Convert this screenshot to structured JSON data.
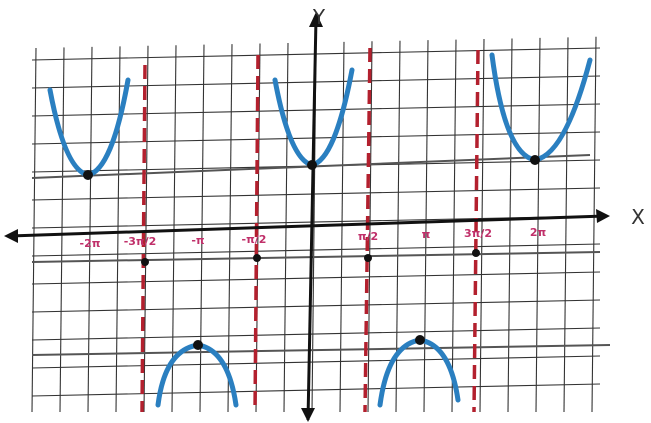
{
  "axes": {
    "x_label": "X",
    "y_label": "Y"
  },
  "tick_labels": [
    "-2π",
    "-3π/2",
    "-π",
    "-π/2",
    "π/2",
    "π",
    "3π/2",
    "2π"
  ]
}
